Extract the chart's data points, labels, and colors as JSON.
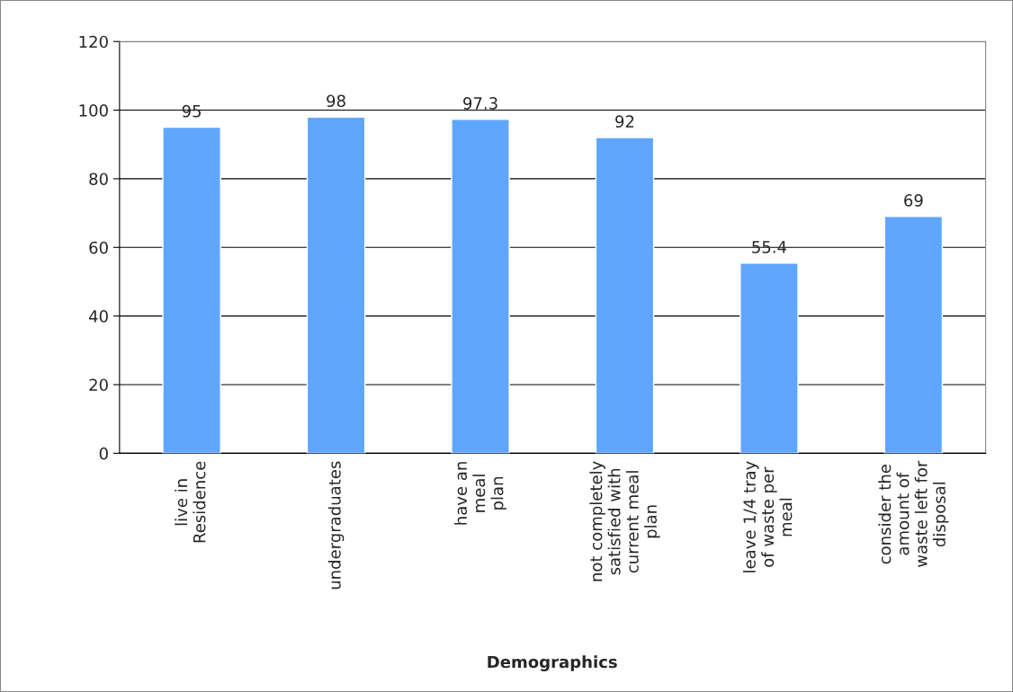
{
  "chart_data": {
    "type": "bar",
    "xlabel": "Demographics",
    "categories": [
      "live in\nResidence",
      "undergraduates",
      "have an\nmeal\nplan",
      "not completely\nsatisfied with\ncurrent meal\nplan",
      "leave 1/4 tray\nof waste per\nmeal",
      "consider the\namount of\nwaste left for\ndisposal"
    ],
    "values": [
      95,
      98,
      97.3,
      92,
      55.4,
      69
    ],
    "color": "#5fa6ff",
    "ylim": [
      0,
      120
    ],
    "yticks": [
      0,
      20,
      40,
      60,
      80,
      100,
      120
    ],
    "grid": "y",
    "data_labels": true,
    "legend": false
  }
}
